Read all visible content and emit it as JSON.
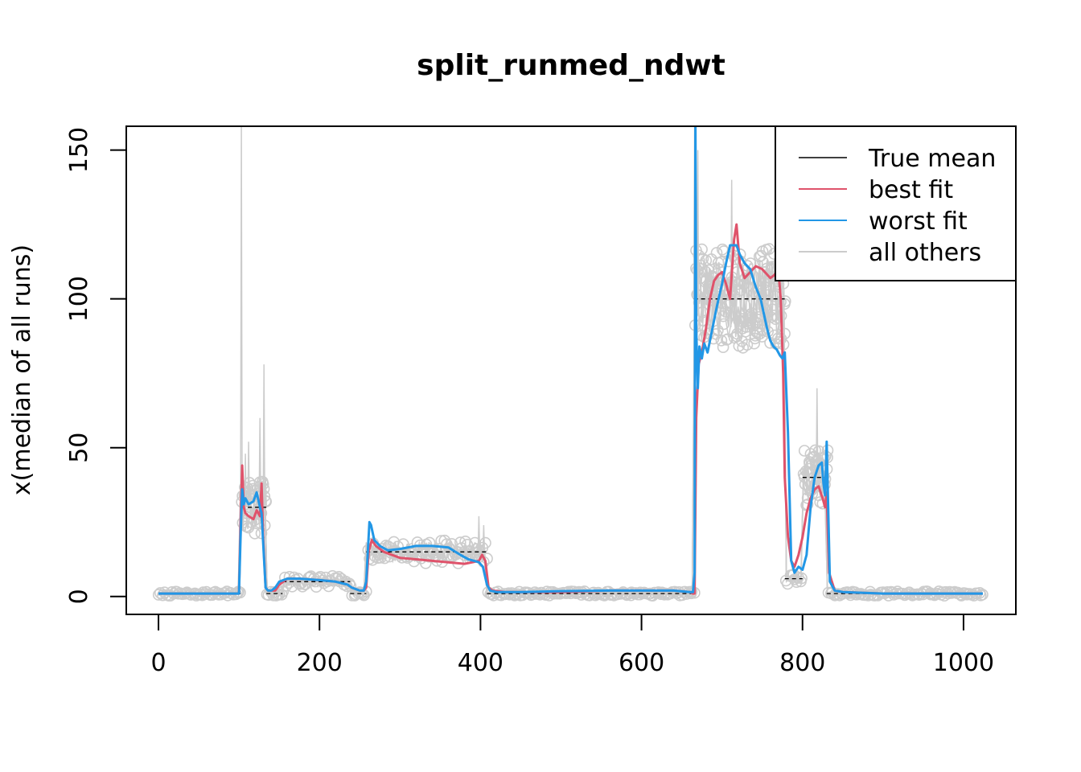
{
  "chart_data": {
    "type": "line",
    "title": "split_runmed_ndwt",
    "xlabel": "",
    "ylabel": "x(median of all runs)",
    "xlim": [
      -40,
      1065
    ],
    "ylim": [
      -6,
      158
    ],
    "x_ticks": [
      0,
      200,
      400,
      600,
      800,
      1000
    ],
    "x_tick_labels": [
      "0",
      "200",
      "400",
      "600",
      "800",
      "1000"
    ],
    "y_ticks": [
      0,
      50,
      100,
      150
    ],
    "y_tick_labels": [
      "0",
      "50",
      "100",
      "150"
    ],
    "grid": false,
    "legend_position": "top-right",
    "colors": {
      "true_mean": "#000000",
      "best_fit": "#DF536B",
      "worst_fit": "#2297E6",
      "others": "#CCCCCC"
    },
    "legend": [
      {
        "key": "true_mean",
        "label": "True mean"
      },
      {
        "key": "best_fit",
        "label": "best fit"
      },
      {
        "key": "worst_fit",
        "label": "worst fit"
      },
      {
        "key": "others",
        "label": "all others"
      }
    ],
    "series": [
      {
        "name": "True mean",
        "key": "true_mean",
        "style": "dashed-segments",
        "segments": [
          {
            "x": [
              0,
              102
            ],
            "y": 1
          },
          {
            "x": [
              102,
              134
            ],
            "y": 30
          },
          {
            "x": [
              134,
              154
            ],
            "y": 1
          },
          {
            "x": [
              154,
              238
            ],
            "y": 5
          },
          {
            "x": [
              238,
              258
            ],
            "y": 1
          },
          {
            "x": [
              258,
              408
            ],
            "y": 15
          },
          {
            "x": [
              408,
              665
            ],
            "y": 1
          },
          {
            "x": [
              665,
              778
            ],
            "y": 100
          },
          {
            "x": [
              778,
              800
            ],
            "y": 6
          },
          {
            "x": [
              800,
              830
            ],
            "y": 40
          },
          {
            "x": [
              830,
              1024
            ],
            "y": 1
          }
        ]
      },
      {
        "name": "best fit",
        "key": "best_fit",
        "x": [
          0,
          100,
          102,
          104,
          106,
          108,
          112,
          118,
          122,
          126,
          128,
          130,
          133,
          136,
          140,
          145,
          150,
          155,
          160,
          175,
          200,
          220,
          235,
          240,
          250,
          255,
          258,
          261,
          265,
          270,
          280,
          300,
          320,
          340,
          360,
          380,
          390,
          398,
          402,
          406,
          410,
          415,
          430,
          460,
          500,
          560,
          600,
          640,
          660,
          664,
          666,
          668,
          671,
          675,
          680,
          685,
          690,
          695,
          700,
          705,
          710,
          715,
          718,
          722,
          728,
          735,
          742,
          750,
          760,
          765,
          770,
          773,
          776,
          778,
          782,
          786,
          790,
          795,
          800,
          805,
          810,
          815,
          820,
          825,
          828,
          830,
          833,
          840,
          850,
          900,
          1000,
          1024
        ],
        "y": [
          1,
          1,
          25,
          44,
          30,
          28,
          27,
          26,
          29,
          27,
          38,
          20,
          3,
          2,
          2,
          2,
          4,
          5,
          6,
          6,
          5.5,
          5,
          4,
          3,
          2,
          2,
          3,
          15,
          19,
          17,
          15,
          13,
          12.5,
          12,
          11.5,
          11,
          11.5,
          12,
          14,
          12,
          3,
          2,
          1.5,
          1.5,
          1.5,
          2,
          2,
          2,
          1.5,
          1,
          1,
          60,
          78,
          82,
          90,
          100,
          106,
          108,
          109,
          105,
          100,
          120,
          125,
          112,
          107,
          109,
          111,
          110,
          107,
          108,
          110,
          100,
          75,
          40,
          20,
          12,
          10,
          14,
          20,
          28,
          33,
          36,
          37,
          33,
          30,
          35,
          8,
          2,
          1.5,
          1,
          1,
          1
        ]
      },
      {
        "name": "worst fit",
        "key": "worst_fit",
        "x": [
          0,
          100,
          102,
          104,
          106,
          108,
          112,
          118,
          122,
          126,
          128,
          130,
          133,
          136,
          140,
          145,
          150,
          155,
          160,
          175,
          200,
          220,
          235,
          240,
          250,
          255,
          258,
          261,
          262,
          264,
          268,
          275,
          285,
          300,
          320,
          340,
          360,
          375,
          385,
          392,
          398,
          403,
          408,
          412,
          420,
          450,
          500,
          560,
          600,
          640,
          660,
          664,
          666,
          667,
          668,
          670,
          672,
          675,
          678,
          682,
          688,
          694,
          700,
          705,
          710,
          715,
          718,
          722,
          728,
          735,
          742,
          748,
          752,
          756,
          760,
          764,
          768,
          772,
          775,
          778,
          782,
          786,
          790,
          795,
          800,
          805,
          810,
          815,
          820,
          824,
          826,
          828,
          830,
          834,
          840,
          850,
          900,
          1000,
          1024
        ],
        "y": [
          1,
          1,
          20,
          36,
          31,
          33,
          31,
          32,
          35,
          30,
          28,
          18,
          3,
          2,
          2,
          3,
          5,
          5.5,
          6,
          6,
          5.5,
          5,
          4,
          3,
          2,
          2,
          5,
          20,
          25,
          24,
          19,
          17,
          15.5,
          16,
          17,
          17,
          16.5,
          14,
          12.5,
          12,
          11.5,
          10,
          4,
          2,
          1.5,
          1.5,
          1.8,
          2,
          2,
          2,
          1.5,
          1.5,
          8,
          160,
          90,
          70,
          84,
          80,
          85,
          82,
          90,
          98,
          105,
          112,
          118,
          118,
          118,
          115,
          112,
          110,
          104,
          100,
          95,
          90,
          86,
          84,
          83,
          81,
          80,
          82,
          55,
          12,
          8,
          10,
          9,
          14,
          30,
          40,
          44,
          45,
          38,
          34,
          52,
          5,
          2,
          1.5,
          1,
          1,
          1
        ]
      },
      {
        "name": "all others",
        "key": "others",
        "style": "point-cloud",
        "description_free": true
      }
    ]
  }
}
